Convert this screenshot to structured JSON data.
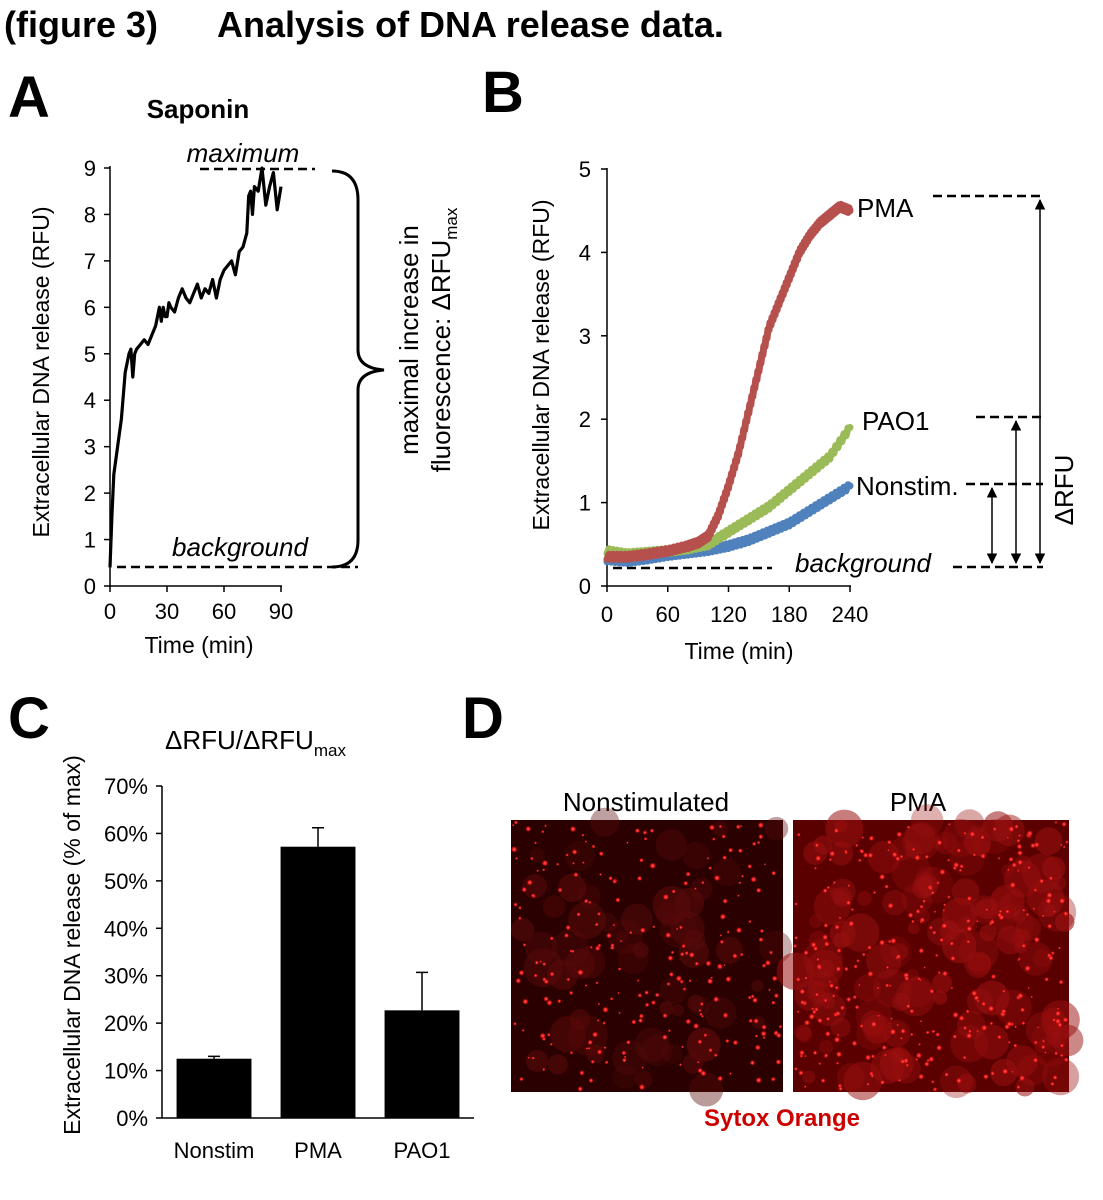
{
  "figure": {
    "heading": "(figure 3)",
    "title": "Analysis of DNA release data."
  },
  "panel_labels": [
    "A",
    "B",
    "C",
    "D"
  ],
  "chart_data": [
    {
      "panel": "A",
      "type": "line",
      "title": "Saponin",
      "xlabel": "Time (min)",
      "ylabel": "Extracellular DNA release (RFU)",
      "xlim": [
        0,
        90
      ],
      "ylim": [
        0,
        9
      ],
      "xticks": [
        0,
        30,
        60,
        90
      ],
      "yticks": [
        0,
        1,
        2,
        3,
        4,
        5,
        6,
        7,
        8,
        9
      ],
      "series": [
        {
          "name": "Saponin",
          "color": "#000000",
          "x": [
            0,
            1,
            2,
            4,
            6,
            8,
            10,
            11,
            12,
            13,
            14,
            16,
            18,
            20,
            22,
            24,
            26,
            27,
            28,
            29,
            30,
            31,
            32,
            34,
            36,
            38,
            40,
            42,
            44,
            46,
            48,
            50,
            52,
            54,
            56,
            58,
            60,
            62,
            64,
            66,
            68,
            70,
            72,
            73,
            74,
            75,
            76,
            78,
            80,
            82,
            84,
            86,
            88,
            90
          ],
          "y": [
            0.4,
            1.5,
            2.4,
            3.0,
            3.6,
            4.6,
            5.0,
            5.1,
            4.5,
            5.0,
            5.1,
            5.2,
            5.3,
            5.2,
            5.4,
            5.6,
            6.0,
            5.7,
            6.0,
            5.8,
            5.8,
            6.1,
            6.0,
            5.9,
            6.2,
            6.4,
            6.2,
            6.1,
            6.3,
            6.5,
            6.2,
            6.4,
            6.3,
            6.6,
            6.2,
            6.6,
            6.8,
            6.9,
            7.0,
            6.7,
            7.2,
            7.3,
            7.6,
            8.4,
            8.5,
            8.0,
            8.6,
            8.5,
            9.0,
            8.2,
            8.6,
            8.9,
            8.1,
            8.6
          ]
        }
      ],
      "annotations": {
        "maximum": "maximum",
        "background": "background",
        "brace_line1": "maximal increase in",
        "brace_line2_prefix": "fluorescence: ΔRFU",
        "brace_line2_sub": "max"
      }
    },
    {
      "panel": "B",
      "type": "line",
      "xlabel": "Time (min)",
      "ylabel": "Extracellular DNA release (RFU)",
      "xlim": [
        0,
        240
      ],
      "ylim": [
        0,
        5
      ],
      "xticks": [
        0,
        60,
        120,
        180,
        240
      ],
      "yticks": [
        0,
        1,
        2,
        3,
        4,
        5
      ],
      "series": [
        {
          "name": "PMA",
          "color": "#b5504d",
          "x": [
            0,
            20,
            40,
            60,
            80,
            90,
            100,
            110,
            120,
            130,
            140,
            150,
            160,
            170,
            180,
            190,
            200,
            210,
            220,
            230,
            240
          ],
          "y": [
            0.35,
            0.35,
            0.38,
            0.42,
            0.48,
            0.52,
            0.6,
            0.85,
            1.2,
            1.6,
            2.1,
            2.6,
            3.1,
            3.4,
            3.7,
            4.0,
            4.2,
            4.35,
            4.45,
            4.55,
            4.5
          ]
        },
        {
          "name": "PAO1",
          "color": "#9bbb59",
          "x": [
            0,
            20,
            40,
            60,
            80,
            100,
            120,
            140,
            160,
            180,
            200,
            220,
            240
          ],
          "y": [
            0.42,
            0.38,
            0.4,
            0.42,
            0.45,
            0.5,
            0.65,
            0.8,
            0.95,
            1.15,
            1.35,
            1.55,
            1.9
          ]
        },
        {
          "name": "Nonstim.",
          "color": "#4f81bd",
          "x": [
            0,
            20,
            40,
            60,
            80,
            100,
            120,
            140,
            160,
            180,
            200,
            220,
            240
          ],
          "y": [
            0.32,
            0.3,
            0.33,
            0.37,
            0.4,
            0.43,
            0.48,
            0.55,
            0.65,
            0.75,
            0.9,
            1.05,
            1.2
          ]
        }
      ],
      "annotations": {
        "background": "background",
        "delta_label": "ΔRFU",
        "levels": [
          {
            "value": 4.65
          },
          {
            "value": 2.0
          },
          {
            "value": 1.2
          },
          {
            "value": 0.2
          }
        ]
      }
    },
    {
      "panel": "C",
      "type": "bar",
      "title_prefix": "ΔRFU/ΔRFU",
      "title_sub": "max",
      "ylabel": "Extracellular DNA release (% of max)",
      "ylim": [
        0,
        70
      ],
      "yticks": [
        0,
        10,
        20,
        30,
        40,
        50,
        60,
        70
      ],
      "ytick_labels": [
        "0%",
        "10%",
        "20%",
        "30%",
        "40%",
        "50%",
        "60%",
        "70%"
      ],
      "categories": [
        "Nonstim",
        "PMA",
        "PAO1"
      ],
      "values": [
        12.5,
        57.2,
        22.7
      ],
      "errors": [
        0.5,
        4.0,
        8.0
      ],
      "bar_color": "#000000"
    }
  ],
  "panel_d": {
    "label_left": "Nonstimulated",
    "label_right": "PMA",
    "caption": "Sytox Orange",
    "caption_color": "#cc0000"
  }
}
